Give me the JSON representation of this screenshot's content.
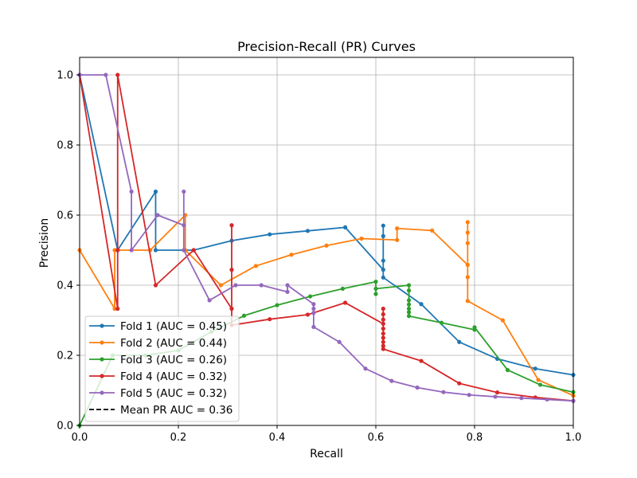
{
  "chart_data": {
    "type": "line",
    "title": "Precision-Recall (PR) Curves",
    "xlabel": "Recall",
    "ylabel": "Precision",
    "xlim": [
      0,
      1
    ],
    "ylim": [
      0,
      1.05
    ],
    "xticks": [
      0,
      0.2,
      0.4,
      0.6,
      0.8,
      1
    ],
    "xtick_labels": [
      "0.0",
      "0.2",
      "0.4",
      "0.6",
      "0.8",
      "1.0"
    ],
    "yticks": [
      0,
      0.2,
      0.4,
      0.6,
      0.8,
      1
    ],
    "ytick_labels": [
      "0.0",
      "0.2",
      "0.4",
      "0.6",
      "0.8",
      "1.0"
    ],
    "grid": true,
    "legend_position": "lower-left",
    "series": [
      {
        "name": "Fold 1 (AUC = 0.45)",
        "color": "#1f77b4",
        "points": [
          [
            0,
            1.0
          ],
          [
            0.077,
            0.5
          ],
          [
            0.154,
            0.667
          ],
          [
            0.154,
            0.5
          ],
          [
            0.231,
            0.5
          ],
          [
            0.308,
            0.527
          ],
          [
            0.385,
            0.545
          ],
          [
            0.462,
            0.555
          ],
          [
            0.538,
            0.565
          ],
          [
            0.615,
            0.444
          ],
          [
            0.615,
            0.57
          ],
          [
            0.615,
            0.54
          ],
          [
            0.615,
            0.47
          ],
          [
            0.615,
            0.422
          ],
          [
            0.692,
            0.346
          ],
          [
            0.769,
            0.238
          ],
          [
            0.846,
            0.19
          ],
          [
            0.923,
            0.162
          ],
          [
            1.0,
            0.144
          ]
        ]
      },
      {
        "name": "Fold 2 (AUC = 0.44)",
        "color": "#ff7f0e",
        "points": [
          [
            0,
            0.5
          ],
          [
            0.071,
            0.333
          ],
          [
            0.071,
            0.5
          ],
          [
            0.143,
            0.5
          ],
          [
            0.214,
            0.6
          ],
          [
            0.214,
            0.5
          ],
          [
            0.286,
            0.4
          ],
          [
            0.357,
            0.455
          ],
          [
            0.429,
            0.487
          ],
          [
            0.5,
            0.513
          ],
          [
            0.571,
            0.533
          ],
          [
            0.643,
            0.529
          ],
          [
            0.643,
            0.562
          ],
          [
            0.714,
            0.556
          ],
          [
            0.786,
            0.458
          ],
          [
            0.786,
            0.58
          ],
          [
            0.786,
            0.55
          ],
          [
            0.786,
            0.52
          ],
          [
            0.786,
            0.423
          ],
          [
            0.786,
            0.355
          ],
          [
            0.857,
            0.3
          ],
          [
            0.929,
            0.13
          ],
          [
            1.0,
            0.085
          ]
        ]
      },
      {
        "name": "Fold 3 (AUC = 0.26)",
        "color": "#2ca02c",
        "points": [
          [
            0,
            0.0
          ],
          [
            0.067,
            0.2
          ],
          [
            0.133,
            0.2
          ],
          [
            0.2,
            0.214
          ],
          [
            0.267,
            0.267
          ],
          [
            0.333,
            0.313
          ],
          [
            0.4,
            0.343
          ],
          [
            0.467,
            0.368
          ],
          [
            0.533,
            0.39
          ],
          [
            0.6,
            0.41
          ],
          [
            0.6,
            0.375
          ],
          [
            0.6,
            0.39
          ],
          [
            0.667,
            0.4
          ],
          [
            0.667,
            0.385
          ],
          [
            0.667,
            0.357
          ],
          [
            0.667,
            0.345
          ],
          [
            0.667,
            0.333
          ],
          [
            0.667,
            0.323
          ],
          [
            0.667,
            0.312
          ],
          [
            0.733,
            0.293
          ],
          [
            0.8,
            0.273
          ],
          [
            0.8,
            0.28
          ],
          [
            0.867,
            0.158
          ],
          [
            0.933,
            0.116
          ],
          [
            1.0,
            0.095
          ]
        ]
      },
      {
        "name": "Fold 4 (AUC = 0.32)",
        "color": "#d62728",
        "points": [
          [
            0,
            1.0
          ],
          [
            0.077,
            0.333
          ],
          [
            0.077,
            0.5
          ],
          [
            0.077,
            1.0
          ],
          [
            0.154,
            0.4
          ],
          [
            0.231,
            0.5
          ],
          [
            0.308,
            0.333
          ],
          [
            0.308,
            0.571
          ],
          [
            0.308,
            0.444
          ],
          [
            0.308,
            0.286
          ],
          [
            0.385,
            0.303
          ],
          [
            0.462,
            0.316
          ],
          [
            0.538,
            0.35
          ],
          [
            0.615,
            0.29
          ],
          [
            0.615,
            0.333
          ],
          [
            0.615,
            0.317
          ],
          [
            0.615,
            0.302
          ],
          [
            0.615,
            0.276
          ],
          [
            0.615,
            0.262
          ],
          [
            0.615,
            0.25
          ],
          [
            0.615,
            0.238
          ],
          [
            0.615,
            0.227
          ],
          [
            0.615,
            0.218
          ],
          [
            0.692,
            0.184
          ],
          [
            0.769,
            0.12
          ],
          [
            0.846,
            0.094
          ],
          [
            0.923,
            0.08
          ],
          [
            1.0,
            0.07
          ]
        ]
      },
      {
        "name": "Fold 5 (AUC = 0.32)",
        "color": "#9467bd",
        "points": [
          [
            0,
            1.0
          ],
          [
            0.053,
            1.0
          ],
          [
            0.105,
            0.667
          ],
          [
            0.105,
            0.5
          ],
          [
            0.158,
            0.6
          ],
          [
            0.211,
            0.571
          ],
          [
            0.211,
            0.667
          ],
          [
            0.211,
            0.5
          ],
          [
            0.263,
            0.357
          ],
          [
            0.316,
            0.4
          ],
          [
            0.368,
            0.4
          ],
          [
            0.421,
            0.381
          ],
          [
            0.421,
            0.4
          ],
          [
            0.474,
            0.346
          ],
          [
            0.474,
            0.333
          ],
          [
            0.474,
            0.321
          ],
          [
            0.474,
            0.281
          ],
          [
            0.526,
            0.238
          ],
          [
            0.579,
            0.162
          ],
          [
            0.632,
            0.127
          ],
          [
            0.684,
            0.108
          ],
          [
            0.737,
            0.095
          ],
          [
            0.789,
            0.087
          ],
          [
            0.842,
            0.082
          ],
          [
            0.895,
            0.078
          ],
          [
            0.947,
            0.074
          ],
          [
            1.0,
            0.07
          ]
        ]
      }
    ],
    "mean": {
      "name": "Mean PR AUC = 0.36",
      "color": "#000000",
      "style": "dashed"
    }
  }
}
